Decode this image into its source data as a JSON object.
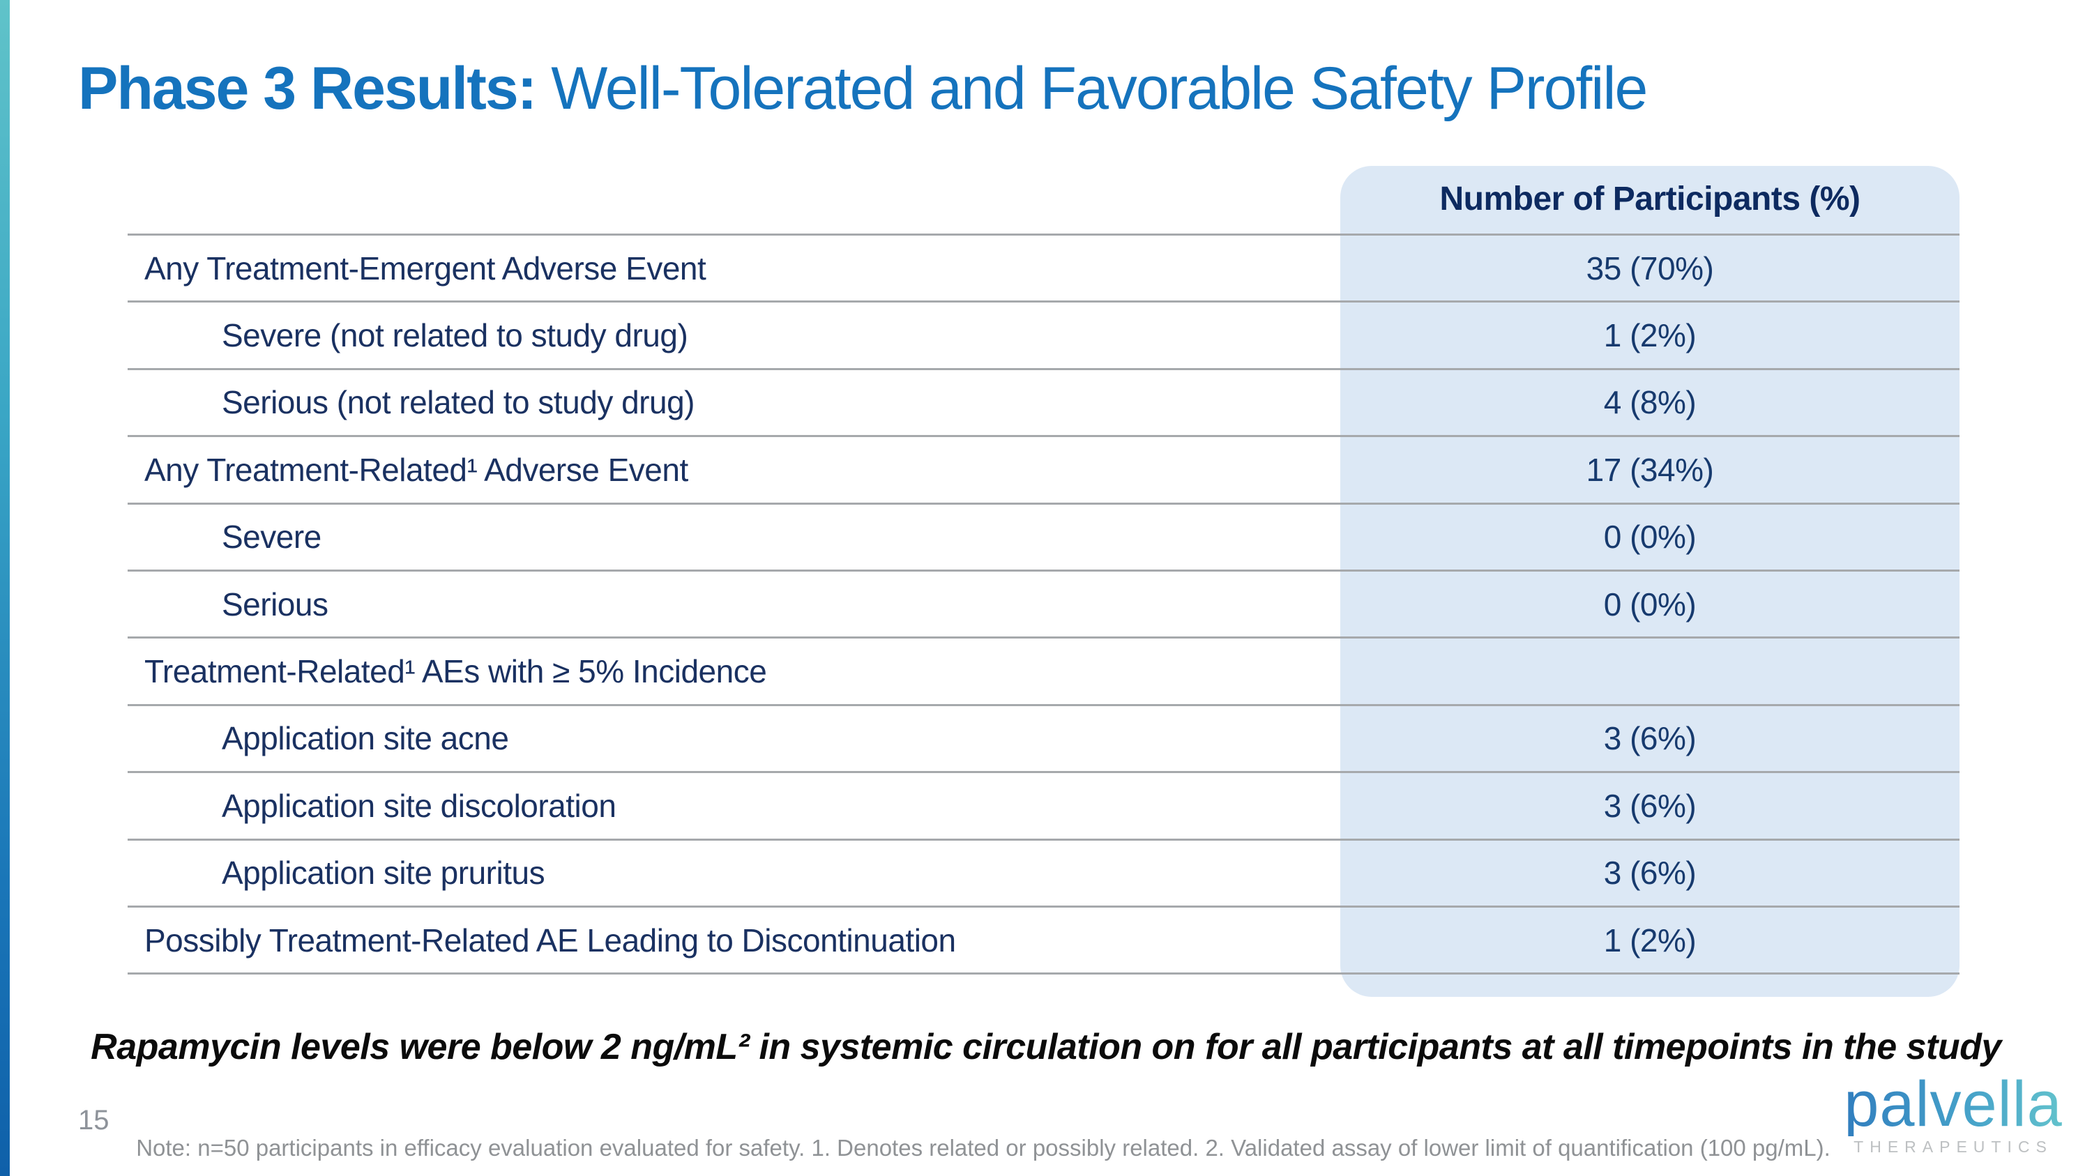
{
  "title": {
    "bold": "Phase 3 Results:",
    "rest": " Well-Tolerated and Favorable Safety Profile"
  },
  "table": {
    "column_header": "Number of Participants (%)",
    "rows": [
      {
        "label": "Any Treatment-Emergent Adverse Event",
        "value": "35 (70%)",
        "indent": false
      },
      {
        "label": "Severe (not related to study drug)",
        "value": "1 (2%)",
        "indent": true
      },
      {
        "label": "Serious (not related to study drug)",
        "value": "4 (8%)",
        "indent": true
      },
      {
        "label": "Any Treatment-Related¹ Adverse Event",
        "value": "17 (34%)",
        "indent": false
      },
      {
        "label": "Severe",
        "value": "0 (0%)",
        "indent": true
      },
      {
        "label": "Serious",
        "value": "0 (0%)",
        "indent": true
      },
      {
        "label": "Treatment-Related¹ AEs with ≥ 5% Incidence",
        "value": "",
        "indent": false
      },
      {
        "label": "Application site acne",
        "value": "3 (6%)",
        "indent": true
      },
      {
        "label": "Application site discoloration",
        "value": "3 (6%)",
        "indent": true
      },
      {
        "label": "Application site pruritus",
        "value": "3 (6%)",
        "indent": true
      },
      {
        "label": "Possibly Treatment-Related AE Leading to Discontinuation",
        "value": "1 (2%)",
        "indent": false
      }
    ]
  },
  "statement": "Rapamycin levels were below 2 ng/mL² in systemic circulation on for all participants at all timepoints in the study",
  "footer": {
    "page_number": "15",
    "note": "Note: n=50 participants in efficacy evaluation evaluated for safety. 1. Denotes related or possibly related. 2. Validated assay of lower limit of quantification (100 pg/mL)."
  },
  "logo": {
    "name": "palvella",
    "subtitle": "THERAPEUTICS"
  },
  "colors": {
    "title_blue": "#1573bd",
    "label_navy": "#1a3161",
    "header_navy": "#0d2a60",
    "column_fill": "#dce8f5",
    "separator_gray": "#a6a9ac",
    "accent_bar_top": "#60c3c9",
    "accent_bar_bottom": "#0f60a9"
  }
}
